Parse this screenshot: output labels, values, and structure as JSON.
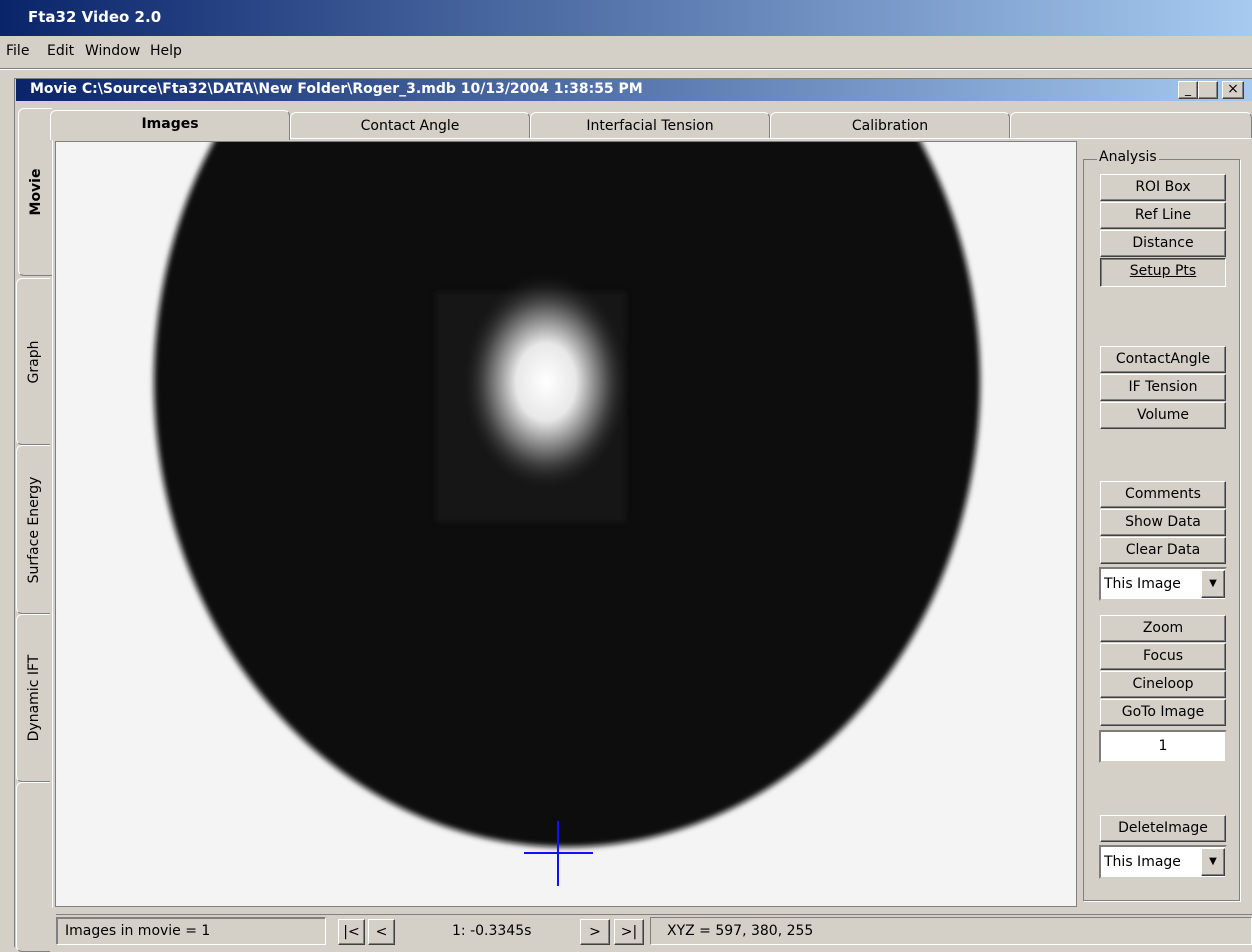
{
  "app_title": "Fta32 Video 2.0",
  "menu": [
    "File",
    "Edit",
    "Window",
    "Help"
  ],
  "window_title": "Movie C:\\Source\\Fta32\\DATA\\New Folder\\Roger_3.mdb 10/13/2004 1:38:55 PM",
  "side_tabs": [
    "Movie",
    "Graph",
    "Surface Energy",
    "Dynamic IFT"
  ],
  "top_tabs": [
    "Images",
    "Contact Angle",
    "Interfacial Tension",
    "Calibration"
  ],
  "analysis": {
    "label": "Analysis",
    "buttons_1": [
      "ROI Box",
      "Ref Line",
      "Distance",
      "Setup Pts"
    ],
    "buttons_2": [
      "ContactAngle",
      "IF Tension",
      "Volume"
    ],
    "buttons_3": [
      "Comments",
      "Show Data",
      "Clear Data"
    ],
    "dropdown_1": "This Image",
    "buttons_4": [
      "Zoom",
      "Focus",
      "Cineloop",
      "GoTo Image"
    ],
    "image_number": "1",
    "delete_button": "DeleteImage",
    "dropdown_2": "This Image"
  },
  "status": {
    "images_in_movie": "Images in movie = 1",
    "nav_back": [
      "|<",
      "<"
    ],
    "frame": "1: -0.3345s",
    "nav_fwd": [
      ">",
      ">|"
    ],
    "xyz": "XYZ = 597, 380, 255"
  }
}
